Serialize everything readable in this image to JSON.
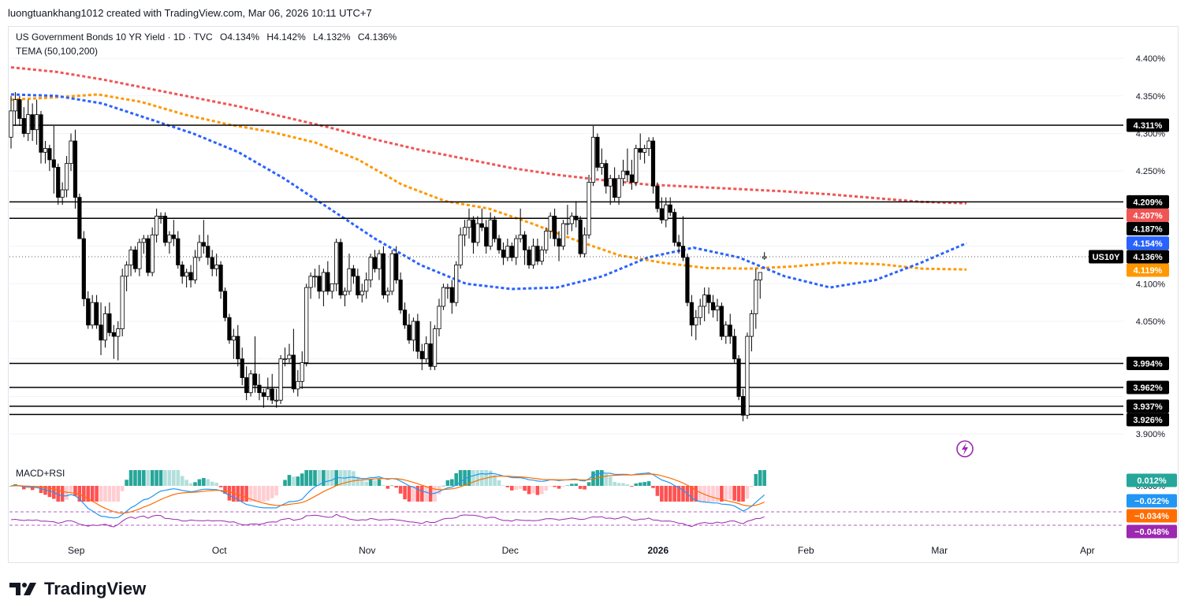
{
  "header": {
    "attribution": "luongtuankhang1012 created with TradingView.com, Mar 06, 2026 10:11 UTC+7"
  },
  "legend": {
    "symbol": "US Government Bonds 10 YR Yield · 1D · TVC",
    "open": "O4.134%",
    "high": "H4.142%",
    "low": "L4.132%",
    "close": "C4.136%",
    "indicator": "TEMA (50,100,200)",
    "lower_indicator": "MACD+RSI"
  },
  "brand": {
    "name": "TradingView",
    "icon": "tradingview-logo-icon"
  },
  "colors": {
    "up_body": "#ffffff",
    "down_body": "#000000",
    "candle_border": "#000000",
    "tema50": "#2962ff",
    "tema100": "#ff9800",
    "tema200": "#f05555",
    "macd": "#2196f3",
    "signal": "#ff6d00",
    "rsi": "#9c27b0",
    "hist_pos_strong": "#26a69a",
    "hist_pos_weak": "#b2dfdb",
    "hist_neg_strong": "#ff5252",
    "hist_neg_weak": "#ffcdd2"
  },
  "chart_data": {
    "type": "candlestick",
    "y_axis_ticks": [
      "4.400%",
      "4.350%",
      "4.300%",
      "4.250%",
      "4.100%",
      "4.050%",
      "3.900%"
    ],
    "x_axis_ticks": [
      {
        "label": "Sep",
        "date": "2025-09-01"
      },
      {
        "label": "Oct",
        "date": "2025-10-01"
      },
      {
        "label": "Nov",
        "date": "2025-11-01"
      },
      {
        "label": "Dec",
        "date": "2025-12-01"
      },
      {
        "label": "2026",
        "date": "2026-01-01"
      },
      {
        "label": "Feb",
        "date": "2026-02-01"
      },
      {
        "label": "Mar",
        "date": "2026-03-01"
      },
      {
        "label": "Apr",
        "date": "2026-04-01"
      }
    ],
    "ylim": [
      3.875,
      4.42
    ],
    "horizontal_levels": [
      4.311,
      4.209,
      4.187,
      3.994,
      3.962,
      3.937,
      3.926
    ],
    "symbol_tag": "US10Y",
    "price_tags": [
      {
        "value": 4.311,
        "label": "4.311%",
        "kind": "level"
      },
      {
        "value": 4.209,
        "label": "4.209%",
        "kind": "level"
      },
      {
        "value": 4.207,
        "label": "4.207%",
        "kind": "tema200"
      },
      {
        "value": 4.187,
        "label": "4.187%",
        "kind": "level"
      },
      {
        "value": 4.154,
        "label": "4.154%",
        "kind": "tema50"
      },
      {
        "value": 4.136,
        "label": "4.136%",
        "kind": "last"
      },
      {
        "value": 4.119,
        "label": "4.119%",
        "kind": "tema100"
      },
      {
        "value": 3.994,
        "label": "3.994%",
        "kind": "level"
      },
      {
        "value": 3.962,
        "label": "3.962%",
        "kind": "level"
      },
      {
        "value": 3.937,
        "label": "3.937%",
        "kind": "level"
      },
      {
        "value": 3.926,
        "label": "3.926%",
        "kind": "level"
      }
    ],
    "ohlc_columns": [
      "open",
      "high",
      "low",
      "close"
    ],
    "candles": [
      [
        4.295,
        4.35,
        4.28,
        4.33
      ],
      [
        4.33,
        4.355,
        4.31,
        4.345
      ],
      [
        4.345,
        4.35,
        4.31,
        4.32
      ],
      [
        4.32,
        4.335,
        4.295,
        4.3
      ],
      [
        4.3,
        4.345,
        4.29,
        4.325
      ],
      [
        4.325,
        4.34,
        4.29,
        4.305
      ],
      [
        4.305,
        4.345,
        4.285,
        4.325
      ],
      [
        4.325,
        4.33,
        4.26,
        4.275
      ],
      [
        4.275,
        4.29,
        4.26,
        4.28
      ],
      [
        4.28,
        4.285,
        4.25,
        4.265
      ],
      [
        4.265,
        4.31,
        4.22,
        4.255
      ],
      [
        4.255,
        4.26,
        4.205,
        4.215
      ],
      [
        4.215,
        4.235,
        4.205,
        4.225
      ],
      [
        4.225,
        4.27,
        4.215,
        4.26
      ],
      [
        4.26,
        4.3,
        4.25,
        4.29
      ],
      [
        4.29,
        4.305,
        4.2,
        4.215
      ],
      [
        4.215,
        4.22,
        4.16,
        4.16
      ],
      [
        4.16,
        4.17,
        4.07,
        4.08
      ],
      [
        4.08,
        4.09,
        4.04,
        4.045
      ],
      [
        4.045,
        4.085,
        4.04,
        4.075
      ],
      [
        4.075,
        4.085,
        4.04,
        4.045
      ],
      [
        4.045,
        4.075,
        4.005,
        4.025
      ],
      [
        4.025,
        4.07,
        4.015,
        4.06
      ],
      [
        4.06,
        4.075,
        4.03,
        4.035
      ],
      [
        4.035,
        4.045,
        4.0,
        4.03
      ],
      [
        4.03,
        4.05,
        3.998,
        4.04
      ],
      [
        4.04,
        4.12,
        4.03,
        4.11
      ],
      [
        4.11,
        4.13,
        4.09,
        4.125
      ],
      [
        4.125,
        4.15,
        4.11,
        4.145
      ],
      [
        4.145,
        4.15,
        4.115,
        4.12
      ],
      [
        4.12,
        4.16,
        4.11,
        4.155
      ],
      [
        4.155,
        4.165,
        4.14,
        4.16
      ],
      [
        4.16,
        4.165,
        4.11,
        4.115
      ],
      [
        4.115,
        4.175,
        4.11,
        4.165
      ],
      [
        4.165,
        4.2,
        4.155,
        4.19
      ],
      [
        4.19,
        4.195,
        4.18,
        4.19
      ],
      [
        4.19,
        4.195,
        4.15,
        4.155
      ],
      [
        4.155,
        4.17,
        4.14,
        4.165
      ],
      [
        4.165,
        4.185,
        4.15,
        4.16
      ],
      [
        4.16,
        4.17,
        4.12,
        4.125
      ],
      [
        4.125,
        4.13,
        4.1,
        4.11
      ],
      [
        4.11,
        4.12,
        4.095,
        4.115
      ],
      [
        4.115,
        4.125,
        4.095,
        4.105
      ],
      [
        4.105,
        4.145,
        4.1,
        4.135
      ],
      [
        4.135,
        4.165,
        4.13,
        4.155
      ],
      [
        4.155,
        4.185,
        4.14,
        4.15
      ],
      [
        4.15,
        4.165,
        4.125,
        4.135
      ],
      [
        4.135,
        4.145,
        4.11,
        4.12
      ],
      [
        4.12,
        4.14,
        4.11,
        4.125
      ],
      [
        4.125,
        4.13,
        4.08,
        4.09
      ],
      [
        4.09,
        4.095,
        4.05,
        4.055
      ],
      [
        4.055,
        4.06,
        4.02,
        4.025
      ],
      [
        4.025,
        4.04,
        4.0,
        4.03
      ],
      [
        4.03,
        4.045,
        3.99,
        4.0
      ],
      [
        4.0,
        4.015,
        3.965,
        3.975
      ],
      [
        3.975,
        3.99,
        3.945,
        3.955
      ],
      [
        3.955,
        3.985,
        3.95,
        3.98
      ],
      [
        3.98,
        4.03,
        3.955,
        3.965
      ],
      [
        3.965,
        3.98,
        3.945,
        3.955
      ],
      [
        3.955,
        3.96,
        3.935,
        3.95
      ],
      [
        3.95,
        3.975,
        3.945,
        3.96
      ],
      [
        3.96,
        3.98,
        3.94,
        3.945
      ],
      [
        3.945,
        3.96,
        3.935,
        3.945
      ],
      [
        3.945,
        4.005,
        3.94,
        4.0
      ],
      [
        4.0,
        4.015,
        3.99,
        4.0
      ],
      [
        4.0,
        4.02,
        3.995,
        4.005
      ],
      [
        4.005,
        4.04,
        3.955,
        3.96
      ],
      [
        3.96,
        3.985,
        3.95,
        3.97
      ],
      [
        3.97,
        4.01,
        3.96,
        3.995
      ],
      [
        3.995,
        4.1,
        3.99,
        4.095
      ],
      [
        4.095,
        4.115,
        4.08,
        4.11
      ],
      [
        4.11,
        4.12,
        4.095,
        4.11
      ],
      [
        4.11,
        4.125,
        4.08,
        4.09
      ],
      [
        4.09,
        4.12,
        4.07,
        4.115
      ],
      [
        4.115,
        4.13,
        4.085,
        4.09
      ],
      [
        4.09,
        4.1,
        4.08,
        4.1
      ],
      [
        4.1,
        4.16,
        4.09,
        4.155
      ],
      [
        4.155,
        4.16,
        4.08,
        4.085
      ],
      [
        4.085,
        4.095,
        4.07,
        4.09
      ],
      [
        4.09,
        4.14,
        4.085,
        4.12
      ],
      [
        4.12,
        4.125,
        4.1,
        4.11
      ],
      [
        4.11,
        4.12,
        4.08,
        4.085
      ],
      [
        4.085,
        4.1,
        4.075,
        4.09
      ],
      [
        4.09,
        4.115,
        4.08,
        4.105
      ],
      [
        4.105,
        4.14,
        4.095,
        4.135
      ],
      [
        4.135,
        4.145,
        4.115,
        4.12
      ],
      [
        4.12,
        4.145,
        4.105,
        4.14
      ],
      [
        4.14,
        4.15,
        4.08,
        4.085
      ],
      [
        4.085,
        4.095,
        4.075,
        4.09
      ],
      [
        4.09,
        4.145,
        4.085,
        4.14
      ],
      [
        4.14,
        4.15,
        4.1,
        4.105
      ],
      [
        4.105,
        4.115,
        4.06,
        4.065
      ],
      [
        4.065,
        4.075,
        4.04,
        4.045
      ],
      [
        4.045,
        4.06,
        4.02,
        4.025
      ],
      [
        4.025,
        4.055,
        4.01,
        4.05
      ],
      [
        4.05,
        4.06,
        4.0,
        4.01
      ],
      [
        4.01,
        4.02,
        3.985,
        4.0
      ],
      [
        4.0,
        4.03,
        3.995,
        4.02
      ],
      [
        4.02,
        4.05,
        3.985,
        3.99
      ],
      [
        3.99,
        4.045,
        3.985,
        4.04
      ],
      [
        4.04,
        4.08,
        4.03,
        4.07
      ],
      [
        4.07,
        4.1,
        4.065,
        4.095
      ],
      [
        4.095,
        4.1,
        4.08,
        4.095
      ],
      [
        4.095,
        4.105,
        4.06,
        4.075
      ],
      [
        4.075,
        4.13,
        4.07,
        4.125
      ],
      [
        4.125,
        4.175,
        4.12,
        4.165
      ],
      [
        4.165,
        4.185,
        4.15,
        4.175
      ],
      [
        4.175,
        4.2,
        4.16,
        4.185
      ],
      [
        4.185,
        4.19,
        4.14,
        4.155
      ],
      [
        4.155,
        4.19,
        4.15,
        4.18
      ],
      [
        4.18,
        4.2,
        4.17,
        4.175
      ],
      [
        4.175,
        4.185,
        4.14,
        4.15
      ],
      [
        4.15,
        4.195,
        4.145,
        4.185
      ],
      [
        4.185,
        4.19,
        4.155,
        4.16
      ],
      [
        4.16,
        4.165,
        4.14,
        4.145
      ],
      [
        4.145,
        4.155,
        4.125,
        4.135
      ],
      [
        4.135,
        4.16,
        4.13,
        4.15
      ],
      [
        4.15,
        4.155,
        4.13,
        4.135
      ],
      [
        4.135,
        4.165,
        4.125,
        4.16
      ],
      [
        4.16,
        4.2,
        4.155,
        4.165
      ],
      [
        4.165,
        4.17,
        4.125,
        4.145
      ],
      [
        4.145,
        4.15,
        4.12,
        4.125
      ],
      [
        4.125,
        4.16,
        4.12,
        4.15
      ],
      [
        4.15,
        4.16,
        4.125,
        4.13
      ],
      [
        4.13,
        4.15,
        4.125,
        4.145
      ],
      [
        4.145,
        4.175,
        4.14,
        4.17
      ],
      [
        4.17,
        4.195,
        4.16,
        4.19
      ],
      [
        4.19,
        4.2,
        4.15,
        4.16
      ],
      [
        4.16,
        4.17,
        4.13,
        4.15
      ],
      [
        4.15,
        4.185,
        4.145,
        4.18
      ],
      [
        4.18,
        4.205,
        4.165,
        4.18
      ],
      [
        4.18,
        4.195,
        4.17,
        4.19
      ],
      [
        4.19,
        4.21,
        4.175,
        4.185
      ],
      [
        4.185,
        4.19,
        4.135,
        4.14
      ],
      [
        4.14,
        4.175,
        4.135,
        4.165
      ],
      [
        4.165,
        4.245,
        4.16,
        4.235
      ],
      [
        4.235,
        4.31,
        4.23,
        4.295
      ],
      [
        4.295,
        4.3,
        4.25,
        4.255
      ],
      [
        4.255,
        4.28,
        4.245,
        4.26
      ],
      [
        4.26,
        4.265,
        4.22,
        4.23
      ],
      [
        4.23,
        4.245,
        4.205,
        4.24
      ],
      [
        4.24,
        4.255,
        4.21,
        4.215
      ],
      [
        4.215,
        4.245,
        4.205,
        4.24
      ],
      [
        4.24,
        4.265,
        4.23,
        4.25
      ],
      [
        4.25,
        4.28,
        4.235,
        4.245
      ],
      [
        4.245,
        4.265,
        4.225,
        4.235
      ],
      [
        4.235,
        4.285,
        4.23,
        4.28
      ],
      [
        4.28,
        4.3,
        4.265,
        4.275
      ],
      [
        4.275,
        4.285,
        4.26,
        4.28
      ],
      [
        4.28,
        4.295,
        4.27,
        4.29
      ],
      [
        4.29,
        4.295,
        4.22,
        4.23
      ],
      [
        4.23,
        4.235,
        4.195,
        4.2
      ],
      [
        4.2,
        4.215,
        4.18,
        4.185
      ],
      [
        4.185,
        4.215,
        4.175,
        4.205
      ],
      [
        4.205,
        4.215,
        4.19,
        4.195
      ],
      [
        4.195,
        4.2,
        4.15,
        4.155
      ],
      [
        4.155,
        4.165,
        4.14,
        4.15
      ],
      [
        4.15,
        4.19,
        4.13,
        4.135
      ],
      [
        4.135,
        4.14,
        4.07,
        4.075
      ],
      [
        4.075,
        4.085,
        4.03,
        4.045
      ],
      [
        4.045,
        4.065,
        4.025,
        4.055
      ],
      [
        4.055,
        4.08,
        4.045,
        4.07
      ],
      [
        4.07,
        4.095,
        4.05,
        4.085
      ],
      [
        4.085,
        4.095,
        4.06,
        4.075
      ],
      [
        4.075,
        4.085,
        4.055,
        4.065
      ],
      [
        4.065,
        4.08,
        4.05,
        4.07
      ],
      [
        4.07,
        4.075,
        4.025,
        4.03
      ],
      [
        4.03,
        4.05,
        4.02,
        4.045
      ],
      [
        4.045,
        4.06,
        4.02,
        4.03
      ],
      [
        4.03,
        4.04,
        3.995,
        4.0
      ],
      [
        4.0,
        4.005,
        3.945,
        3.95
      ],
      [
        3.95,
        3.96,
        3.917,
        3.925
      ],
      [
        3.925,
        4.035,
        3.92,
        4.03
      ],
      [
        4.03,
        4.065,
        4.01,
        4.06
      ],
      [
        4.06,
        4.12,
        4.04,
        4.105
      ],
      [
        4.105,
        4.115,
        4.08,
        4.115
      ],
      [
        4.134,
        4.142,
        4.132,
        4.136
      ]
    ],
    "tema50": [
      4.352,
      4.35,
      4.34,
      4.32,
      4.3,
      4.275,
      4.24,
      4.2,
      4.16,
      4.125,
      4.1,
      4.093,
      4.095,
      4.11,
      4.135,
      4.148,
      4.135,
      4.11,
      4.095,
      4.105,
      4.128,
      4.154
    ],
    "tema100": [
      4.345,
      4.348,
      4.352,
      4.342,
      4.325,
      4.312,
      4.302,
      4.288,
      4.265,
      4.232,
      4.21,
      4.2,
      4.18,
      4.158,
      4.138,
      4.128,
      4.121,
      4.12,
      4.123,
      4.128,
      4.126,
      4.12,
      4.119
    ],
    "tema200": [
      4.388,
      4.382,
      4.372,
      4.36,
      4.348,
      4.336,
      4.322,
      4.308,
      4.292,
      4.278,
      4.266,
      4.254,
      4.245,
      4.238,
      4.232,
      4.229,
      4.226,
      4.223,
      4.219,
      4.214,
      4.209,
      4.207
    ],
    "macd_tags": [
      {
        "value": 0.012,
        "label": "0.012%"
      },
      {
        "value": -0.022,
        "label": "−0.022%"
      },
      {
        "value": -0.034,
        "label": "−0.034%"
      },
      {
        "value": -0.048,
        "label": "−0.048%"
      }
    ],
    "macd_axis_tick": "0.000%"
  }
}
